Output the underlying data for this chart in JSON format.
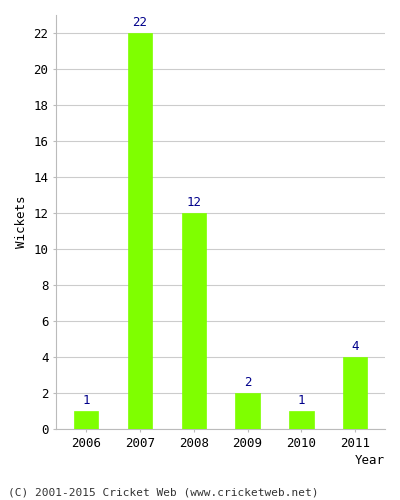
{
  "years": [
    "2006",
    "2007",
    "2008",
    "2009",
    "2010",
    "2011"
  ],
  "values": [
    1,
    22,
    12,
    2,
    1,
    4
  ],
  "bar_color": "#7FFF00",
  "bar_edge_color": "#7FFF00",
  "label_color": "#00008B",
  "xlabel": "Year",
  "ylabel": "Wickets",
  "ylim": [
    0,
    23
  ],
  "yticks": [
    0,
    2,
    4,
    6,
    8,
    10,
    12,
    14,
    16,
    18,
    20,
    22
  ],
  "grid_color": "#cccccc",
  "background_color": "#ffffff",
  "footer_text": "(C) 2001-2015 Cricket Web (www.cricketweb.net)",
  "label_fontsize": 9,
  "axis_label_fontsize": 9,
  "tick_fontsize": 9,
  "footer_fontsize": 8,
  "bar_width": 0.45
}
